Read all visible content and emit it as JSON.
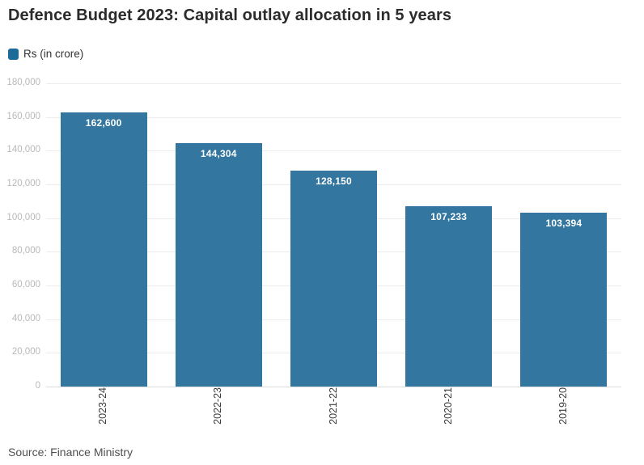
{
  "header": {
    "title": "Defence Budget 2023: Capital outlay allocation in 5 years"
  },
  "legend": {
    "label": "Rs (in crore)"
  },
  "footer": {
    "source": "Source: Finance Ministry"
  },
  "colors": {
    "bar": "#33769f",
    "legend_swatch": "#1c6b99",
    "grid": "#ececec",
    "baseline": "#dcdcdc",
    "y_tick_label": "#b9b9b9",
    "x_tick_label": "#3a3a3a",
    "bar_label": "#ffffff",
    "title": "#2b2b2b"
  },
  "chart_data": {
    "type": "bar",
    "title": "Defence Budget 2023: Capital outlay allocation in 5 years",
    "legend_entries": [
      "Rs (in crore)"
    ],
    "legend_position": "top-left",
    "categories": [
      "2023-24",
      "2022-23",
      "2021-22",
      "2020-21",
      "2019-20"
    ],
    "values": [
      162600,
      144304,
      128150,
      107233,
      103394
    ],
    "value_labels": [
      "162,600",
      "144,304",
      "128,150",
      "107,233",
      "103,394"
    ],
    "xlabel": "",
    "ylabel": "",
    "ylim": [
      0,
      180000
    ],
    "ytick_step": 20000,
    "ytick_labels": [
      "0",
      "20,000",
      "40,000",
      "60,000",
      "80,000",
      "100,000",
      "120,000",
      "140,000",
      "160,000",
      "180,000"
    ],
    "grid": true,
    "source": "Source: Finance Ministry"
  }
}
